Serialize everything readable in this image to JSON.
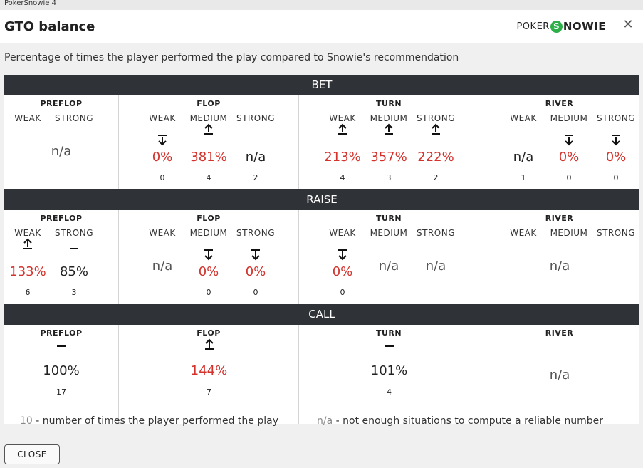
{
  "window": {
    "title": "PokerSnowie 4"
  },
  "header": {
    "title": "GTO balance",
    "logo_a": "POKER",
    "logo_s": "S",
    "logo_b": "NOWIE",
    "close": "✕"
  },
  "subtitle": "Percentage of times the player performed the play compared to Snowie's recommendation",
  "colors": {
    "red": "#d4322c",
    "section_bar": "#2f3236"
  },
  "sections": [
    {
      "label": "BET",
      "streets": [
        {
          "name": "PREFLOP",
          "merged": true,
          "subs": [
            "WEAK",
            "STRONG"
          ],
          "value": "n/a"
        },
        {
          "name": "FLOP",
          "subs": [
            "WEAK",
            "MEDIUM",
            "STRONG"
          ],
          "cells": [
            {
              "arrow": "down-arrow-icon",
              "value": "0%",
              "color": "red",
              "count": "0"
            },
            {
              "arrow": "up-arrow-icon",
              "value": "381%",
              "color": "red",
              "count": "4"
            },
            {
              "arrow": "",
              "value": "n/a",
              "color": "dark",
              "count": "2"
            }
          ]
        },
        {
          "name": "TURN",
          "subs": [
            "WEAK",
            "MEDIUM",
            "STRONG"
          ],
          "cells": [
            {
              "arrow": "up-arrow-icon",
              "value": "213%",
              "color": "red",
              "count": "4"
            },
            {
              "arrow": "up-arrow-icon",
              "value": "357%",
              "color": "red",
              "count": "3"
            },
            {
              "arrow": "up-arrow-icon",
              "value": "222%",
              "color": "red",
              "count": "2"
            }
          ]
        },
        {
          "name": "RIVER",
          "subs": [
            "WEAK",
            "MEDIUM",
            "STRONG"
          ],
          "cells": [
            {
              "arrow": "",
              "value": "n/a",
              "color": "dark",
              "count": "1"
            },
            {
              "arrow": "down-arrow-icon",
              "value": "0%",
              "color": "red",
              "count": "0"
            },
            {
              "arrow": "down-arrow-icon",
              "value": "0%",
              "color": "red",
              "count": "0"
            }
          ]
        }
      ]
    },
    {
      "label": "RAISE",
      "streets": [
        {
          "name": "PREFLOP",
          "subs": [
            "WEAK",
            "STRONG"
          ],
          "cells": [
            {
              "arrow": "up-arrow-icon",
              "value": "133%",
              "color": "red",
              "count": "6"
            },
            {
              "arrow": "dash-icon",
              "value": "85%",
              "color": "dark",
              "count": "3"
            }
          ]
        },
        {
          "name": "FLOP",
          "subs": [
            "WEAK",
            "MEDIUM",
            "STRONG"
          ],
          "cells": [
            {
              "arrow": "",
              "value": "n/a",
              "color": "na",
              "count": ""
            },
            {
              "arrow": "down-arrow-icon",
              "value": "0%",
              "color": "red",
              "count": "0"
            },
            {
              "arrow": "down-arrow-icon",
              "value": "0%",
              "color": "red",
              "count": "0"
            }
          ]
        },
        {
          "name": "TURN",
          "subs": [
            "WEAK",
            "MEDIUM",
            "STRONG"
          ],
          "cells": [
            {
              "arrow": "down-arrow-icon",
              "value": "0%",
              "color": "red",
              "count": "0"
            },
            {
              "arrow": "",
              "value": "n/a",
              "color": "na",
              "count": ""
            },
            {
              "arrow": "",
              "value": "n/a",
              "color": "na",
              "count": ""
            }
          ]
        },
        {
          "name": "RIVER",
          "merged": true,
          "subs": [
            "WEAK",
            "MEDIUM",
            "STRONG"
          ],
          "value": "n/a"
        }
      ]
    },
    {
      "label": "CALL",
      "streets": [
        {
          "name": "PREFLOP",
          "single": true,
          "cells": [
            {
              "arrow": "dash-icon",
              "value": "100%",
              "color": "dark",
              "count": "17"
            }
          ]
        },
        {
          "name": "FLOP",
          "single": true,
          "cells": [
            {
              "arrow": "up-arrow-icon",
              "value": "144%",
              "color": "red",
              "count": "7"
            }
          ]
        },
        {
          "name": "TURN",
          "single": true,
          "cells": [
            {
              "arrow": "dash-icon",
              "value": "101%",
              "color": "dark",
              "count": "4"
            }
          ]
        },
        {
          "name": "RIVER",
          "single": true,
          "merged": true,
          "value": "n/a"
        }
      ]
    }
  ],
  "legend": {
    "left_num": "10",
    "left_text": " - number of times the player performed the play",
    "right_num": "n/a",
    "right_text": " - not enough situations to compute a reliable number"
  },
  "close_button": "CLOSE"
}
